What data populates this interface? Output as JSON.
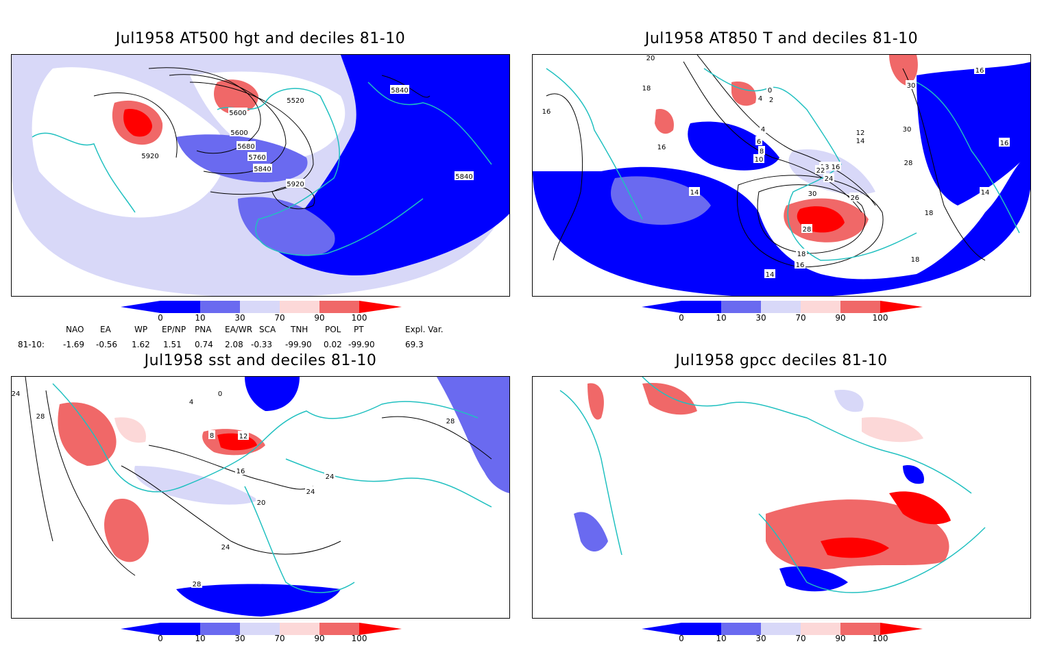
{
  "colors": {
    "land_outline": "#20c0c0",
    "deep_blue": "#0000ff",
    "mid_blue": "#6a6af0",
    "light_blue": "#d8d8f8",
    "light_red": "#fcd8d8",
    "mid_red": "#f06868",
    "deep_red": "#ff0000",
    "contour": "#000000",
    "grid": "#8a8a8a"
  },
  "colorbar": {
    "tick_labels": [
      "0",
      "10",
      "30",
      "70",
      "90",
      "100"
    ]
  },
  "panels": [
    {
      "title": "Jul1958 AT500 hgt and deciles 81-10",
      "contour_labels": [
        "5600",
        "5520",
        "5840",
        "5920",
        "5600",
        "5680",
        "5760",
        "5840",
        "5920",
        "5840"
      ]
    },
    {
      "title": "Jul1958 AT850 T and deciles 81-10",
      "contour_labels": [
        "20",
        "18",
        "16",
        "16",
        "0",
        "2",
        "4",
        "4",
        "6",
        "8",
        "10",
        "12",
        "14",
        "16",
        "18",
        "14",
        "30",
        "26",
        "28",
        "18",
        "22",
        "24",
        "30",
        "16",
        "30",
        "28",
        "16",
        "14",
        "18",
        "18",
        "14",
        "16"
      ]
    },
    {
      "title": "Jul1958 sst and deciles 81-10",
      "contour_labels": [
        "24",
        "28",
        "0",
        "4",
        "8",
        "12",
        "16",
        "20",
        "24",
        "24",
        "28",
        "24",
        "28"
      ]
    },
    {
      "title": "Jul1958 gpcc deciles 81-10",
      "contour_labels": []
    }
  ],
  "indices": {
    "headers": [
      "NAO",
      "EA",
      "WP",
      "EP/NP",
      "PNA",
      "EA/WR",
      "SCA",
      "TNH",
      "POL",
      "PT",
      "Expl. Var."
    ],
    "row_label": "81-10:",
    "values": [
      "-1.69",
      "-0.56",
      "1.62",
      "1.51",
      "0.74",
      "2.08",
      "-0.33",
      "-99.90",
      "0.02",
      "-99.90",
      "69.3"
    ]
  }
}
